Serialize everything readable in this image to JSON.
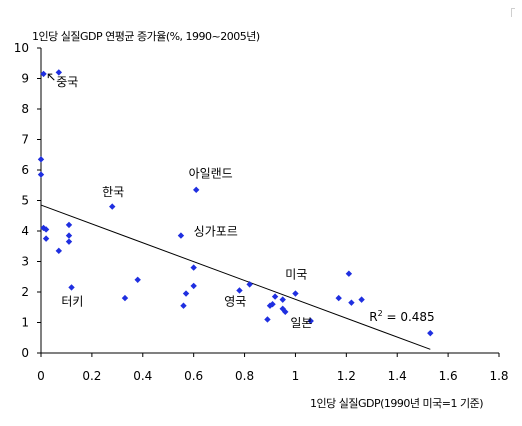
{
  "chart_data": {
    "type": "scatter",
    "title": "",
    "ylabel": "1인당 실질GDP 연평균 증가율(%, 1990~2005년)",
    "xlabel": "1인당 실질GDP(1990년 미국=1 기준)",
    "xlim": [
      0,
      1.8
    ],
    "ylim": [
      0,
      10
    ],
    "x_ticks": [
      "0",
      "0.2",
      "0.4",
      "0.6",
      "0.8",
      "1",
      "1.2",
      "1.4",
      "1.6",
      "1.8"
    ],
    "y_ticks": [
      "0",
      "1",
      "2",
      "3",
      "4",
      "5",
      "6",
      "7",
      "8",
      "9",
      "10"
    ],
    "grid": false,
    "marker_color": "#1f2fe0",
    "points": [
      {
        "x": 0.01,
        "y": 9.15
      },
      {
        "x": 0.07,
        "y": 9.2
      },
      {
        "x": 0.0,
        "y": 6.35
      },
      {
        "x": 0.0,
        "y": 5.85
      },
      {
        "x": 0.01,
        "y": 4.1
      },
      {
        "x": 0.02,
        "y": 4.05
      },
      {
        "x": 0.02,
        "y": 3.75
      },
      {
        "x": 0.07,
        "y": 3.35
      },
      {
        "x": 0.11,
        "y": 4.2
      },
      {
        "x": 0.11,
        "y": 3.85
      },
      {
        "x": 0.11,
        "y": 3.65
      },
      {
        "x": 0.12,
        "y": 2.15
      },
      {
        "x": 0.28,
        "y": 4.8
      },
      {
        "x": 0.33,
        "y": 1.8
      },
      {
        "x": 0.38,
        "y": 2.4
      },
      {
        "x": 0.55,
        "y": 3.85
      },
      {
        "x": 0.56,
        "y": 1.55
      },
      {
        "x": 0.57,
        "y": 1.95
      },
      {
        "x": 0.6,
        "y": 2.2
      },
      {
        "x": 0.6,
        "y": 2.8
      },
      {
        "x": 0.61,
        "y": 5.35
      },
      {
        "x": 0.78,
        "y": 2.05
      },
      {
        "x": 0.82,
        "y": 2.25
      },
      {
        "x": 0.89,
        "y": 1.1
      },
      {
        "x": 0.9,
        "y": 1.55
      },
      {
        "x": 0.91,
        "y": 1.6
      },
      {
        "x": 0.92,
        "y": 1.85
      },
      {
        "x": 0.95,
        "y": 1.45
      },
      {
        "x": 0.96,
        "y": 1.35
      },
      {
        "x": 0.95,
        "y": 1.75
      },
      {
        "x": 1.0,
        "y": 1.95
      },
      {
        "x": 1.06,
        "y": 1.05
      },
      {
        "x": 1.17,
        "y": 1.8
      },
      {
        "x": 1.21,
        "y": 2.6
      },
      {
        "x": 1.22,
        "y": 1.65
      },
      {
        "x": 1.26,
        "y": 1.75
      },
      {
        "x": 1.53,
        "y": 0.65
      }
    ],
    "trendline": {
      "x1": 0.0,
      "y1": 4.85,
      "x2": 1.53,
      "y2": 0.12
    },
    "annotations": [
      {
        "text": "중국",
        "x": 0.06,
        "y": 8.75,
        "arrow": true
      },
      {
        "text": "한국",
        "x": 0.24,
        "y": 5.15
      },
      {
        "text": "아일랜드",
        "x": 0.58,
        "y": 5.75
      },
      {
        "text": "싱가포르",
        "x": 0.6,
        "y": 3.85
      },
      {
        "text": "미국",
        "x": 0.96,
        "y": 2.45
      },
      {
        "text": "영국",
        "x": 0.72,
        "y": 1.55
      },
      {
        "text": "일본",
        "x": 0.98,
        "y": 0.85
      },
      {
        "text": "터키",
        "x": 0.08,
        "y": 1.55
      }
    ],
    "r_squared": {
      "base": "R",
      "sup": "2",
      "rest": " = 0.485",
      "x": 1.29,
      "y": 1.05
    }
  }
}
